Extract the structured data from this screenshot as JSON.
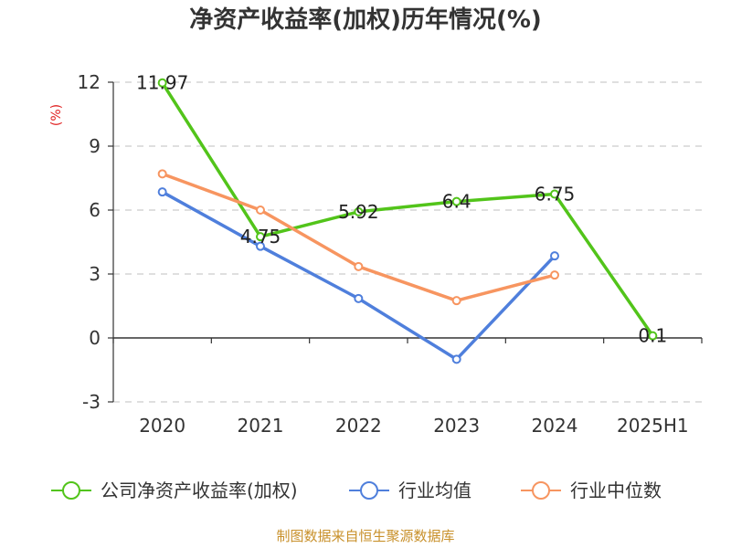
{
  "chart_data": {
    "type": "line",
    "title": "净资产收益率(加权)历年情况(%)",
    "ylabel": "(%)",
    "categories": [
      "2020",
      "2021",
      "2022",
      "2023",
      "2024",
      "2025H1"
    ],
    "ylim": [
      -3,
      12
    ],
    "yticks": [
      12,
      9,
      6,
      3,
      0,
      -3
    ],
    "grid": true,
    "legend_position": "bottom",
    "series": [
      {
        "name": "公司净资产收益率(加权)",
        "color": "#52c41a",
        "values": [
          11.97,
          4.75,
          5.92,
          6.4,
          6.75,
          0.1
        ],
        "labels": [
          "11.97",
          "4.75",
          "5.92",
          "6.4",
          "6.75",
          "0.1"
        ]
      },
      {
        "name": "行业均值",
        "color": "#4f7fdc",
        "values": [
          6.85,
          4.3,
          1.85,
          -1.0,
          3.85,
          null
        ]
      },
      {
        "name": "行业中位数",
        "color": "#f79560",
        "values": [
          7.7,
          6.0,
          3.35,
          1.75,
          2.95,
          null
        ]
      }
    ]
  },
  "source": "制图数据来自恒生聚源数据库"
}
